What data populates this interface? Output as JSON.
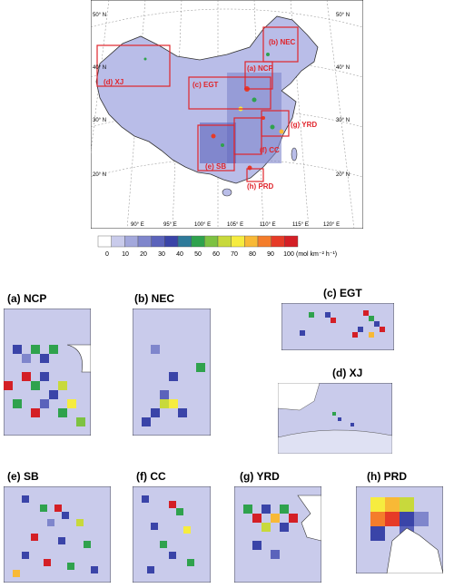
{
  "main_map": {
    "lat_labels_left": [
      "50° N",
      "40° N",
      "30° N",
      "20° N"
    ],
    "lat_labels_right": [
      "50° N",
      "40° N",
      "30° N",
      "20° N"
    ],
    "lon_labels": [
      "90° E",
      "95° E",
      "100° E",
      "105° E",
      "110° E",
      "115° E",
      "120° E"
    ],
    "regions": [
      {
        "code": "(a) NCP"
      },
      {
        "code": "(b) NEC"
      },
      {
        "code": "(c) EGT"
      },
      {
        "code": "(d) XJ"
      },
      {
        "code": "(e) SB"
      },
      {
        "code": "(f) CC"
      },
      {
        "code": "(g) YRD"
      },
      {
        "code": "(h) PRD"
      }
    ]
  },
  "colorbar": {
    "ticks": [
      "0",
      "10",
      "20",
      "30",
      "40",
      "50",
      "60",
      "70",
      "80",
      "90",
      "100"
    ],
    "unit": "(mol km⁻² h⁻¹)",
    "colors": [
      "#ffffff",
      "#c9cbeb",
      "#a3a8dc",
      "#7f86cc",
      "#5b63bb",
      "#3a44a8",
      "#2e7a9a",
      "#2fa24d",
      "#7dc242",
      "#c8d93c",
      "#f6ec3f",
      "#f8b936",
      "#f47d2b",
      "#e63b27",
      "#d41f26"
    ]
  },
  "panels": [
    {
      "title": "(a) NCP"
    },
    {
      "title": "(b) NEC"
    },
    {
      "title": "(c) EGT"
    },
    {
      "title": "(d) XJ"
    },
    {
      "title": "(e) SB"
    },
    {
      "title": "(f) CC"
    },
    {
      "title": "(g) YRD"
    },
    {
      "title": "(h) PRD"
    }
  ]
}
